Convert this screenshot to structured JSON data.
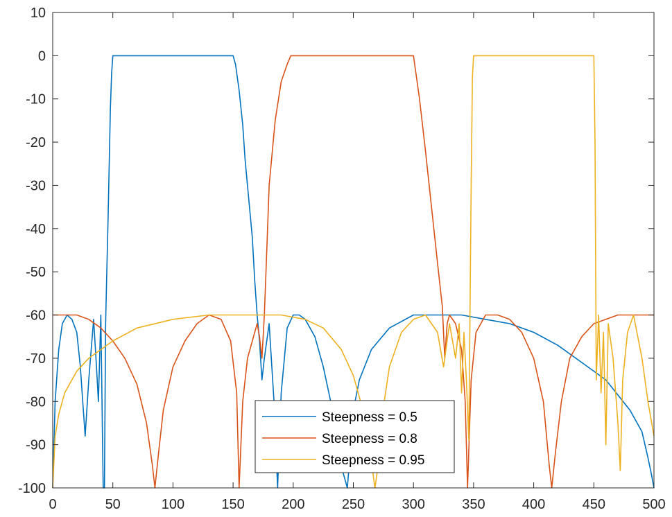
{
  "chart_data": {
    "type": "line",
    "title": "",
    "xlabel": "",
    "ylabel": "",
    "xlim": [
      0,
      500
    ],
    "ylim": [
      -100,
      10
    ],
    "xticks": [
      0,
      50,
      100,
      150,
      200,
      250,
      300,
      350,
      400,
      450,
      500
    ],
    "yticks": [
      10,
      0,
      -10,
      -20,
      -30,
      -40,
      -50,
      -60,
      -70,
      -80,
      -90,
      -100
    ],
    "grid": false,
    "legend_position": "bottom-center",
    "series": [
      {
        "name": "Steepness = 0.5",
        "color": "#0072BD",
        "x": [
          0,
          2,
          5,
          8,
          12,
          16,
          20,
          23,
          25,
          27,
          30,
          34,
          36,
          38,
          40,
          42,
          43,
          44,
          45,
          46,
          47,
          48,
          49,
          50,
          60,
          100,
          150,
          152,
          155,
          158,
          160,
          163,
          166,
          168,
          170,
          172,
          174,
          176,
          180,
          184,
          187,
          190,
          195,
          200,
          205,
          210,
          218,
          225,
          235,
          240,
          245,
          248,
          250,
          255,
          265,
          280,
          300,
          320,
          340,
          360,
          380,
          400,
          420,
          440,
          460,
          480,
          490,
          495,
          498,
          500
        ],
        "y": [
          -100,
          -80,
          -68,
          -62,
          -60,
          -61,
          -64,
          -72,
          -80,
          -88,
          -75,
          -61,
          -70,
          -80,
          -60,
          -100,
          -100,
          -62,
          -50,
          -38,
          -25,
          -12,
          -4,
          0,
          0,
          0,
          0,
          -2,
          -8,
          -16,
          -24,
          -33,
          -42,
          -52,
          -60,
          -66,
          -75,
          -70,
          -62,
          -80,
          -100,
          -78,
          -63,
          -60,
          -60,
          -61,
          -65,
          -72,
          -85,
          -95,
          -100,
          -90,
          -82,
          -75,
          -68,
          -63,
          -60,
          -60,
          -60,
          -61,
          -62,
          -64,
          -67,
          -71,
          -75,
          -82,
          -87,
          -93,
          -97,
          -100
        ]
      },
      {
        "name": "Steepness = 0.8",
        "color": "#D95319",
        "x": [
          0,
          10,
          20,
          30,
          40,
          50,
          60,
          70,
          78,
          83,
          85,
          88,
          92,
          100,
          110,
          120,
          130,
          140,
          148,
          153,
          155,
          158,
          162,
          170,
          172,
          174,
          176,
          178,
          180,
          185,
          190,
          195,
          198,
          200,
          300,
          302,
          305,
          310,
          315,
          320,
          324,
          326,
          328,
          330,
          335,
          340,
          343,
          345,
          348,
          352,
          360,
          370,
          380,
          390,
          400,
          408,
          413,
          415,
          418,
          423,
          430,
          440,
          450,
          460,
          470,
          480,
          490,
          500
        ],
        "y": [
          -60,
          -60,
          -60,
          -61,
          -63,
          -66,
          -70,
          -76,
          -85,
          -95,
          -100,
          -92,
          -82,
          -72,
          -66,
          -62,
          -60,
          -61,
          -66,
          -78,
          -100,
          -80,
          -70,
          -62,
          -65,
          -70,
          -60,
          -45,
          -30,
          -15,
          -6,
          -2,
          0,
          0,
          0,
          -4,
          -10,
          -22,
          -35,
          -48,
          -58,
          -70,
          -62,
          -60,
          -62,
          -68,
          -80,
          -100,
          -75,
          -64,
          -60,
          -60,
          -61,
          -64,
          -70,
          -80,
          -95,
          -100,
          -92,
          -80,
          -70,
          -65,
          -62,
          -61,
          -60,
          -60,
          -60,
          -60
        ]
      },
      {
        "name": "Steepness = 0.95",
        "color": "#EDB120",
        "x": [
          0,
          2,
          5,
          10,
          20,
          30,
          50,
          70,
          100,
          130,
          160,
          190,
          210,
          225,
          240,
          250,
          258,
          264,
          268,
          270,
          273,
          280,
          290,
          300,
          310,
          320,
          325,
          330,
          335,
          338,
          340,
          342,
          344,
          346,
          347,
          348,
          349,
          350,
          450,
          451,
          452,
          454,
          456,
          458,
          460,
          462,
          466,
          470,
          472,
          474,
          478,
          483,
          490,
          495,
          500
        ],
        "y": [
          -100,
          -88,
          -83,
          -78,
          -73,
          -70,
          -66,
          -63,
          -61,
          -60,
          -60,
          -60,
          -61,
          -63,
          -68,
          -74,
          -82,
          -92,
          -100,
          -96,
          -85,
          -72,
          -64,
          -61,
          -60,
          -64,
          -72,
          -62,
          -70,
          -62,
          -78,
          -64,
          -75,
          -89,
          -60,
          -30,
          -5,
          0,
          0,
          -20,
          -75,
          -60,
          -78,
          -64,
          -90,
          -62,
          -70,
          -85,
          -96,
          -75,
          -64,
          -60,
          -70,
          -80,
          -88
        ]
      }
    ]
  }
}
